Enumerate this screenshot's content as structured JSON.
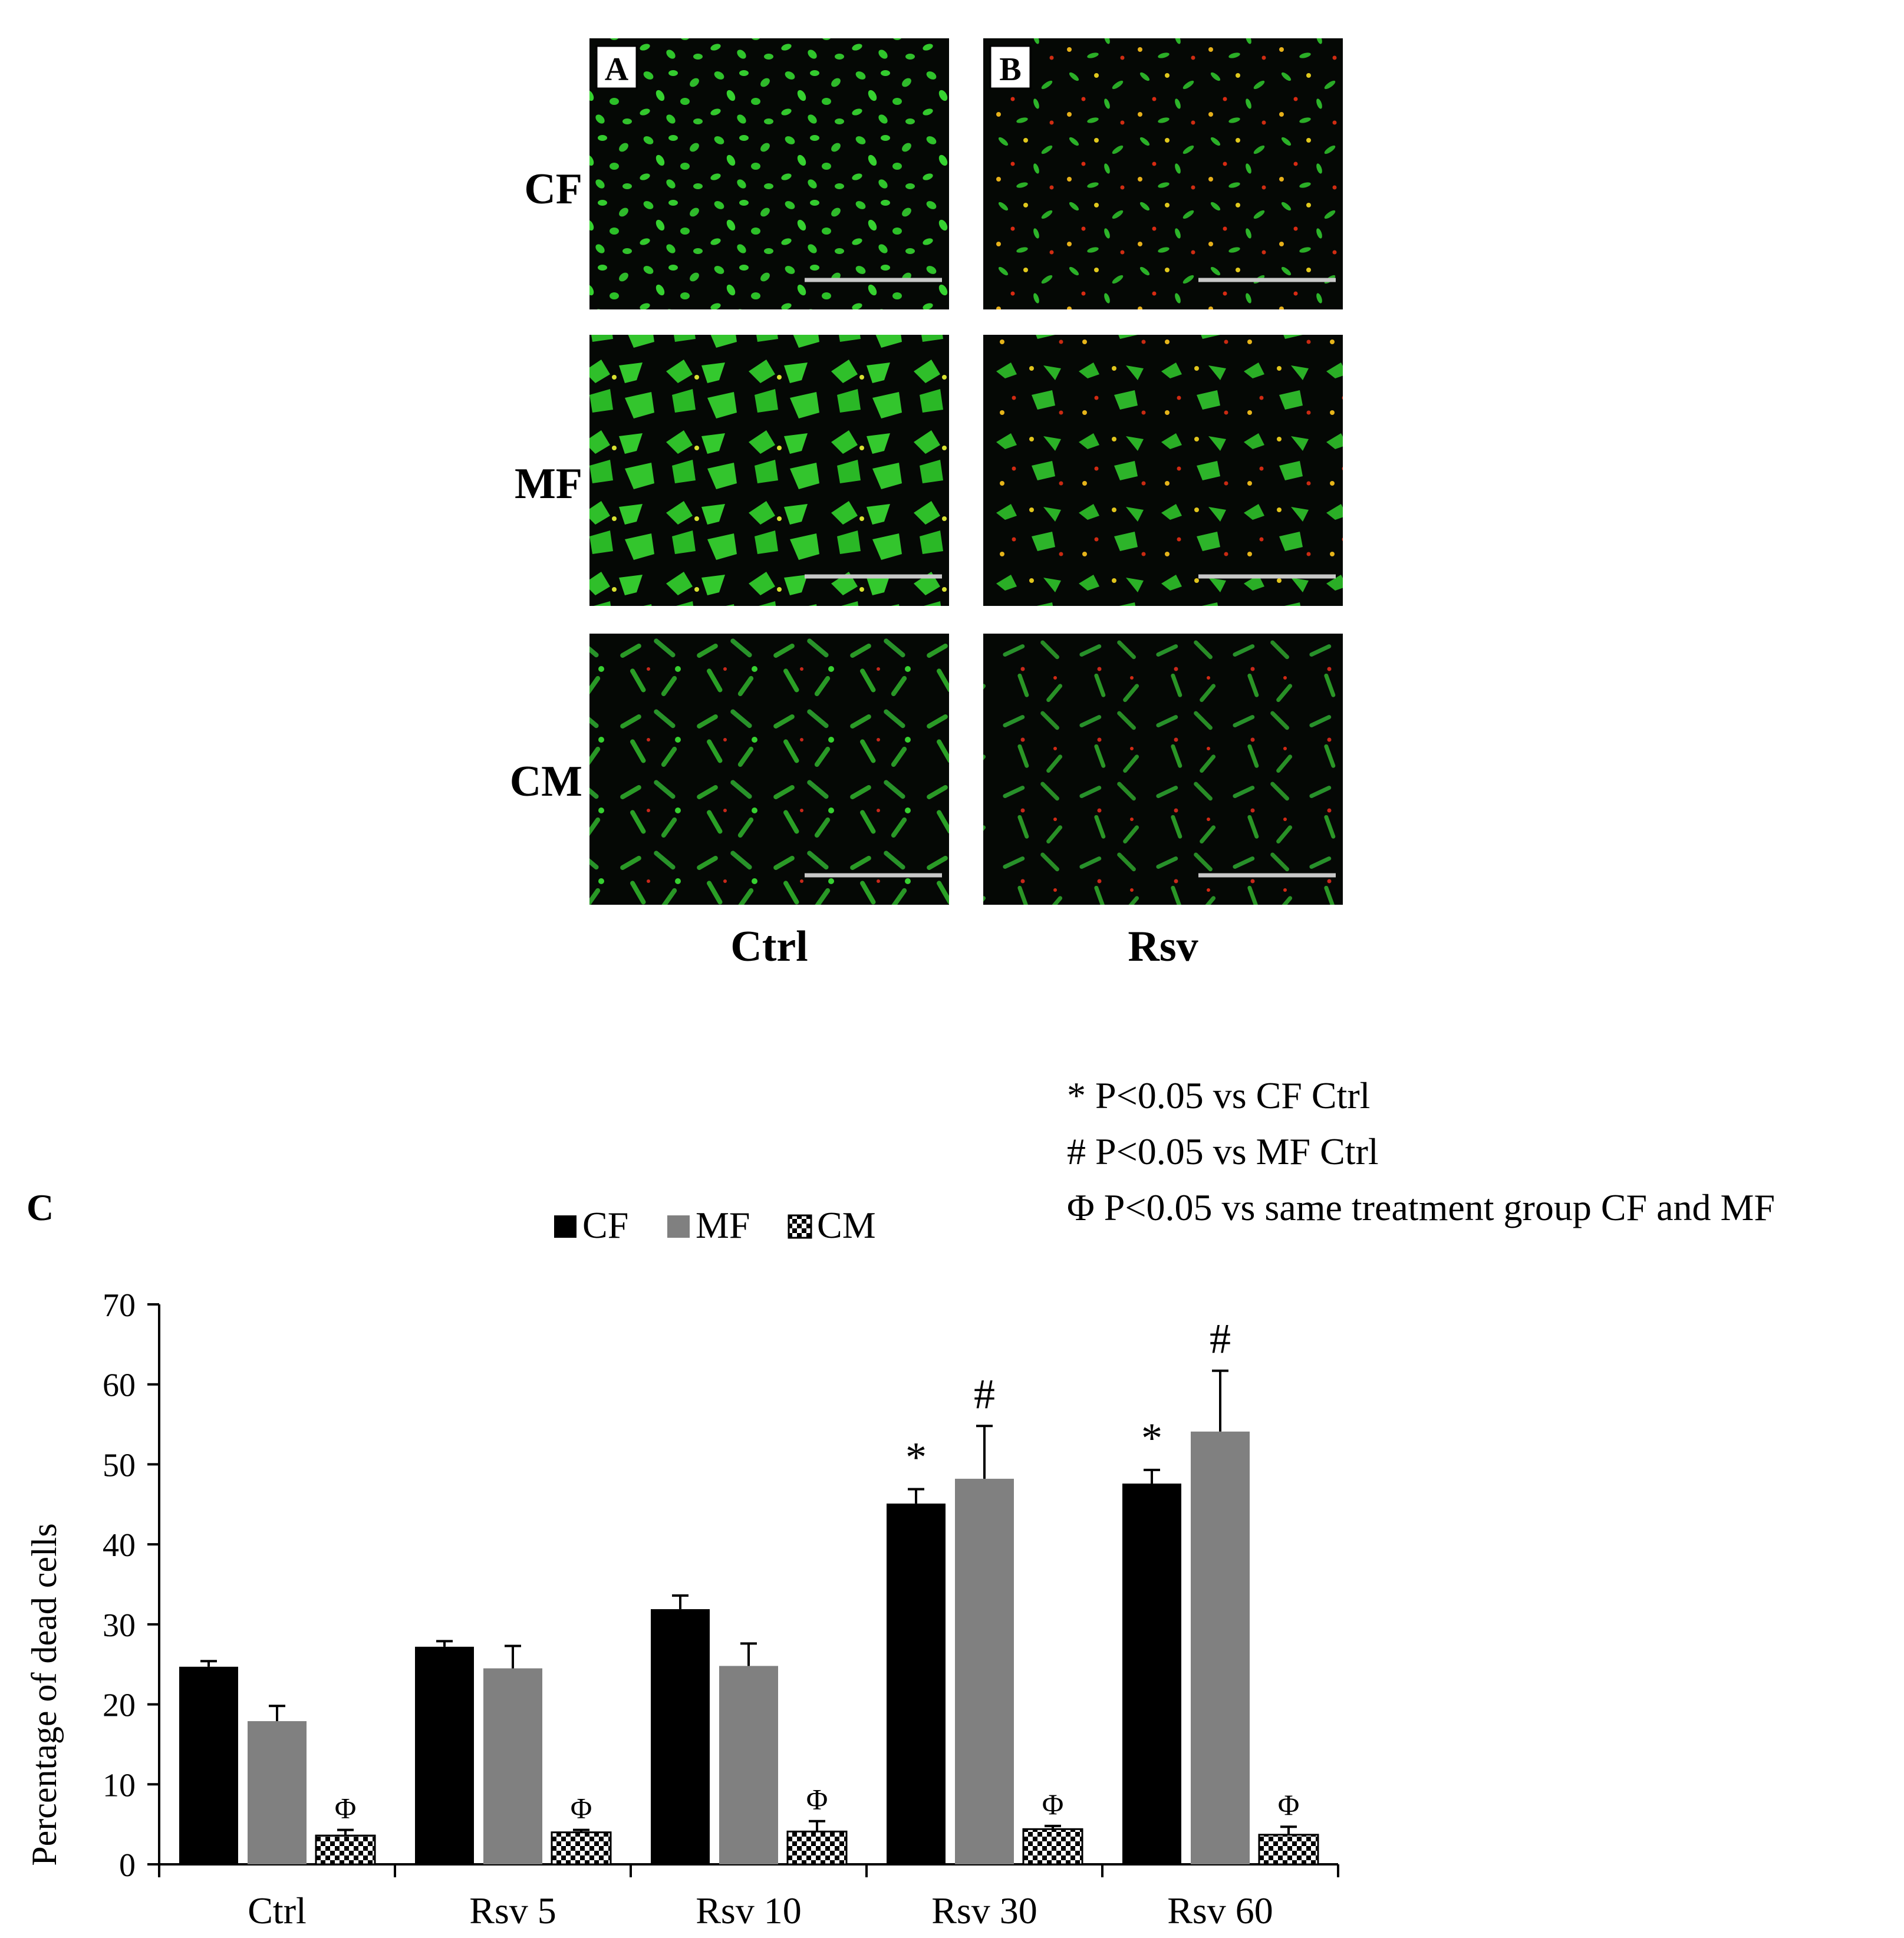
{
  "micrographs": {
    "panel_letters": [
      "A",
      "B"
    ],
    "rows": [
      "CF",
      "MF",
      "CM"
    ],
    "columns": [
      "Ctrl",
      "Rsv"
    ]
  },
  "panel_c_label": "C",
  "significance_notes": [
    "* P<0.05 vs CF Ctrl",
    "# P<0.05 vs MF Ctrl",
    "Φ P<0.05 vs same treatment group CF and MF"
  ],
  "colors": {
    "CF": "#000000",
    "MF": "#808080",
    "CM": "#f0f0f0",
    "axis": "#000000",
    "micro_bg": "#050805",
    "live": "#2ecc2a",
    "dead": "#d62a10",
    "merged": "#e8d020"
  },
  "chart_data": {
    "type": "bar",
    "ylabel": "Percentage of dead cells",
    "xlabel": "",
    "ylim": [
      0,
      70
    ],
    "yticks": [
      0,
      10,
      20,
      30,
      40,
      50,
      60,
      70
    ],
    "categories": [
      "Ctrl",
      "Rsv 5",
      "Rsv 10",
      "Rsv 30",
      "Rsv 60"
    ],
    "legend_position": "top-center",
    "grid": false,
    "series": [
      {
        "name": "CF",
        "pattern": "solid-black",
        "values": [
          24.7,
          27.2,
          31.9,
          45.1,
          47.6
        ],
        "errors": [
          0.7,
          0.7,
          1.7,
          1.8,
          1.7
        ],
        "markers": [
          "",
          "",
          "",
          "*",
          "*"
        ]
      },
      {
        "name": "MF",
        "pattern": "solid-grey",
        "values": [
          17.9,
          24.5,
          24.8,
          48.2,
          54.1
        ],
        "errors": [
          1.9,
          2.8,
          2.8,
          6.6,
          7.6
        ],
        "markers": [
          "",
          "",
          "",
          "#",
          "#"
        ]
      },
      {
        "name": "CM",
        "pattern": "checkered",
        "values": [
          3.6,
          4.0,
          4.1,
          4.4,
          3.7
        ],
        "errors": [
          0.7,
          0.3,
          1.3,
          0.4,
          1.0
        ],
        "markers": [
          "Φ",
          "Φ",
          "Φ",
          "Φ",
          "Φ"
        ]
      }
    ]
  }
}
